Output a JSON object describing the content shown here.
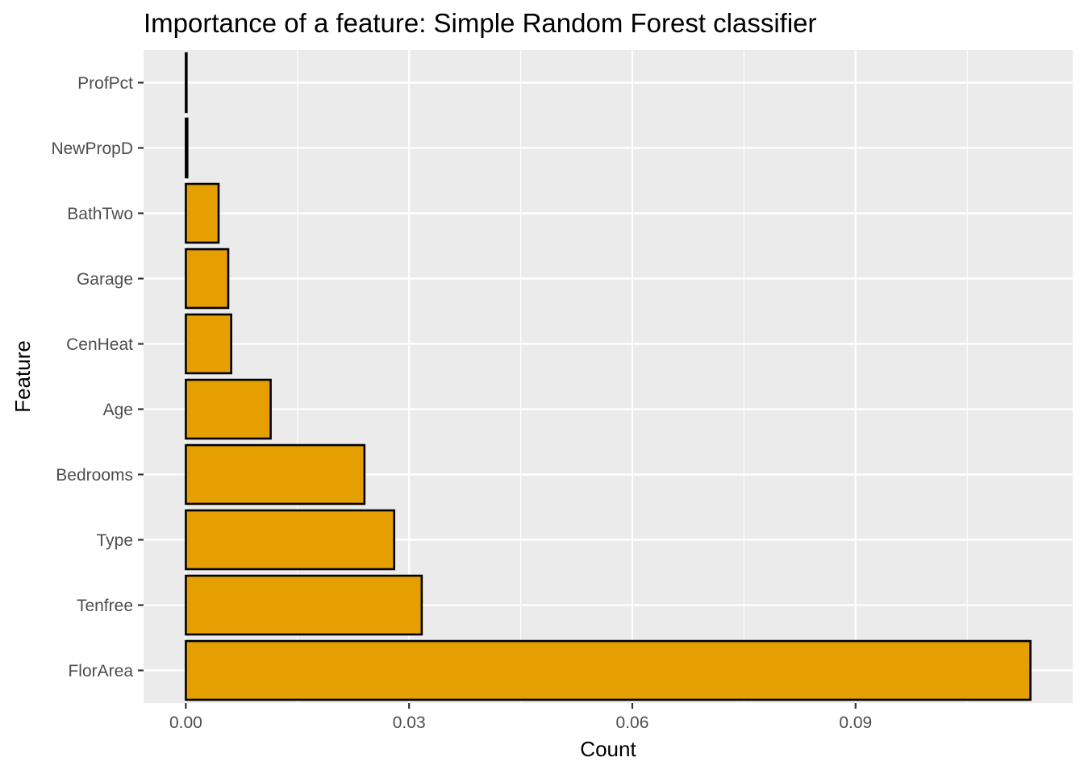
{
  "chart_data": {
    "type": "bar",
    "orientation": "horizontal",
    "title": "Importance of a feature: Simple Random Forest classifier",
    "xlabel": "Count",
    "ylabel": "Feature",
    "categories": [
      "ProfPct",
      "NewPropD",
      "BathTwo",
      "Garage",
      "CenHeat",
      "Age",
      "Bedrooms",
      "Type",
      "Tenfree",
      "FlorArea"
    ],
    "values": [
      0.0001,
      0.0002,
      0.0044,
      0.0057,
      0.0061,
      0.0114,
      0.024,
      0.028,
      0.0317,
      0.1135
    ],
    "x_ticks": [
      "0.00",
      "0.03",
      "0.06",
      "0.09"
    ],
    "x_tick_values": [
      0.0,
      0.03,
      0.06,
      0.09
    ],
    "xlim": [
      -0.00568,
      0.11918
    ],
    "bar_fill": "#E69F00",
    "bar_stroke": "#000000",
    "panel_background": "#EBEBEB",
    "grid": true,
    "legend": "none"
  }
}
